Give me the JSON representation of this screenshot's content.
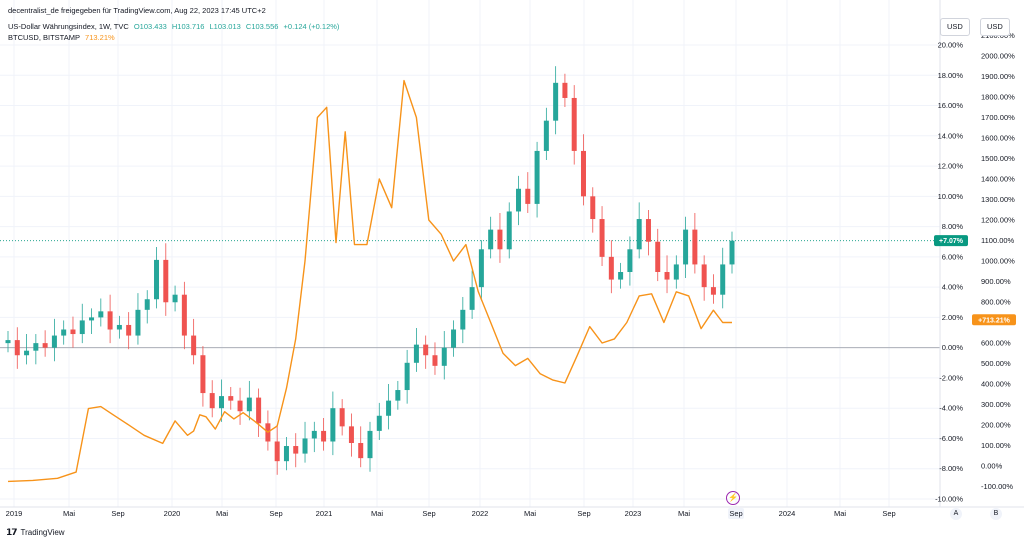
{
  "header": {
    "published": "decentralist_de freigegeben für TradingView.com, Aug 22, 2023 17:45 UTC+2",
    "main_symbol": "US-Dollar Währungsindex, 1W, TVC",
    "ohlc": [
      "O103.433",
      "H103.716",
      "L103.013",
      "C103.556",
      "+0.124 (+0.12%)"
    ],
    "second_symbol": "BTCUSD, BITSTAMP",
    "second_value": "713.21%"
  },
  "scale_buttons": [
    "USD",
    "USD"
  ],
  "footer": {
    "logo": "𝟭𝟳",
    "brand": "TradingView"
  },
  "bottom_buttons": [
    "A",
    "B"
  ],
  "chart_data": {
    "type": "line",
    "title": "",
    "x_labels": [
      "2019",
      "Mai",
      "Sep",
      "2020",
      "Mai",
      "Sep",
      "2021",
      "Mai",
      "Sep",
      "2022",
      "Mai",
      "Sep",
      "2023",
      "Mai",
      "Sep",
      "2024",
      "Mai",
      "Sep"
    ],
    "x_axis_highlight": "Sep",
    "left_axis": {
      "label": "USD",
      "ticks": [
        "20.00%",
        "18.00%",
        "16.00%",
        "14.00%",
        "12.00%",
        "10.00%",
        "8.00%",
        "6.00%",
        "4.00%",
        "2.00%",
        "0.00%",
        "-2.00%",
        "-4.00%",
        "-6.00%",
        "-8.00%",
        "-10.00%"
      ],
      "range": [
        -10,
        20
      ]
    },
    "right_axis": {
      "label": "USD",
      "ticks": [
        "2100.00%",
        "2000.00%",
        "1900.00%",
        "1800.00%",
        "1700.00%",
        "1600.00%",
        "1500.00%",
        "1400.00%",
        "1300.00%",
        "1200.00%",
        "1100.00%",
        "1000.00%",
        "900.00%",
        "800.00%",
        "700.00%",
        "600.00%",
        "500.00%",
        "400.00%",
        "300.00%",
        "200.00%",
        "100.00%",
        "0.00%",
        "-100.00%"
      ],
      "range": [
        -100,
        2100
      ]
    },
    "badges": [
      {
        "text": "+7.07%",
        "color": "#089981",
        "series": "US-Dollar Währungsindex"
      },
      {
        "text": "+713.21%",
        "color": "#f7931a",
        "series": "BTCUSD"
      }
    ],
    "series": [
      {
        "name": "US-Dollar Währungsindex",
        "type": "candlestick",
        "axis": "left",
        "up_color": "#26a69a",
        "down_color": "#ef5350",
        "last_value": 7.07,
        "t": [
          0,
          3,
          6,
          9,
          12,
          15,
          18,
          21,
          24,
          27,
          30,
          33,
          36,
          39,
          42,
          45,
          48,
          51,
          54,
          57,
          60,
          63,
          66,
          69,
          72,
          75,
          78,
          81,
          84,
          87,
          90,
          93,
          96,
          99,
          102,
          105,
          108,
          111,
          114,
          117,
          120,
          123,
          126,
          129,
          132,
          135,
          138,
          141,
          144,
          147,
          150,
          153,
          156,
          159,
          162,
          165,
          168,
          171,
          174,
          177,
          180,
          183,
          186,
          189,
          192,
          195,
          198,
          201,
          204,
          207,
          210,
          213,
          216,
          219,
          222,
          225,
          228,
          231,
          234
        ],
        "close": [
          0.5,
          -0.5,
          -0.2,
          0.3,
          0.0,
          0.8,
          1.2,
          0.9,
          1.8,
          2.0,
          2.4,
          1.2,
          1.5,
          0.8,
          2.5,
          3.2,
          5.8,
          3.0,
          3.5,
          0.8,
          -0.5,
          -3.0,
          -4.0,
          -3.2,
          -3.5,
          -4.2,
          -3.3,
          -5.0,
          -6.2,
          -7.5,
          -6.5,
          -7.0,
          -6.0,
          -5.5,
          -6.2,
          -4.0,
          -5.2,
          -6.3,
          -7.3,
          -5.5,
          -4.5,
          -3.5,
          -2.8,
          -1.0,
          0.2,
          -0.5,
          -1.2,
          0.0,
          1.2,
          2.5,
          4.0,
          6.5,
          7.8,
          6.5,
          9.0,
          10.5,
          9.5,
          13.0,
          15.0,
          17.5,
          16.5,
          13.0,
          10.0,
          8.5,
          6.0,
          4.5,
          5.0,
          6.5,
          8.5,
          7.0,
          5.0,
          4.5,
          5.5,
          7.8,
          5.5,
          4.0,
          3.5,
          5.5,
          7.07
        ]
      },
      {
        "name": "BTCUSD",
        "type": "line",
        "axis": "right",
        "color": "#f7931a",
        "last_value": 713.21,
        "t": [
          0,
          8,
          16,
          22,
          26,
          30,
          34,
          38,
          44,
          50,
          54,
          58,
          60,
          62,
          64,
          67,
          70,
          73,
          76,
          80,
          84,
          87,
          90,
          93,
          96,
          100,
          103,
          106,
          109,
          112,
          116,
          120,
          124,
          128,
          132,
          136,
          140,
          144,
          148,
          152,
          156,
          160,
          164,
          168,
          172,
          176,
          180,
          184,
          188,
          192,
          196,
          200,
          204,
          208,
          212,
          216,
          220,
          224,
          228,
          231,
          234
        ],
        "values": [
          -75,
          -70,
          -60,
          -30,
          280,
          290,
          250,
          210,
          150,
          110,
          220,
          150,
          170,
          250,
          240,
          180,
          265,
          230,
          260,
          215,
          165,
          195,
          380,
          620,
          1000,
          1700,
          1750,
          1090,
          1630,
          1080,
          1080,
          1400,
          1260,
          1880,
          1700,
          1200,
          1130,
          1000,
          1080,
          850,
          700,
          550,
          490,
          525,
          450,
          420,
          405,
          540,
          680,
          600,
          620,
          700,
          830,
          840,
          700,
          850,
          830,
          670,
          760,
          700,
          700
        ]
      }
    ]
  }
}
